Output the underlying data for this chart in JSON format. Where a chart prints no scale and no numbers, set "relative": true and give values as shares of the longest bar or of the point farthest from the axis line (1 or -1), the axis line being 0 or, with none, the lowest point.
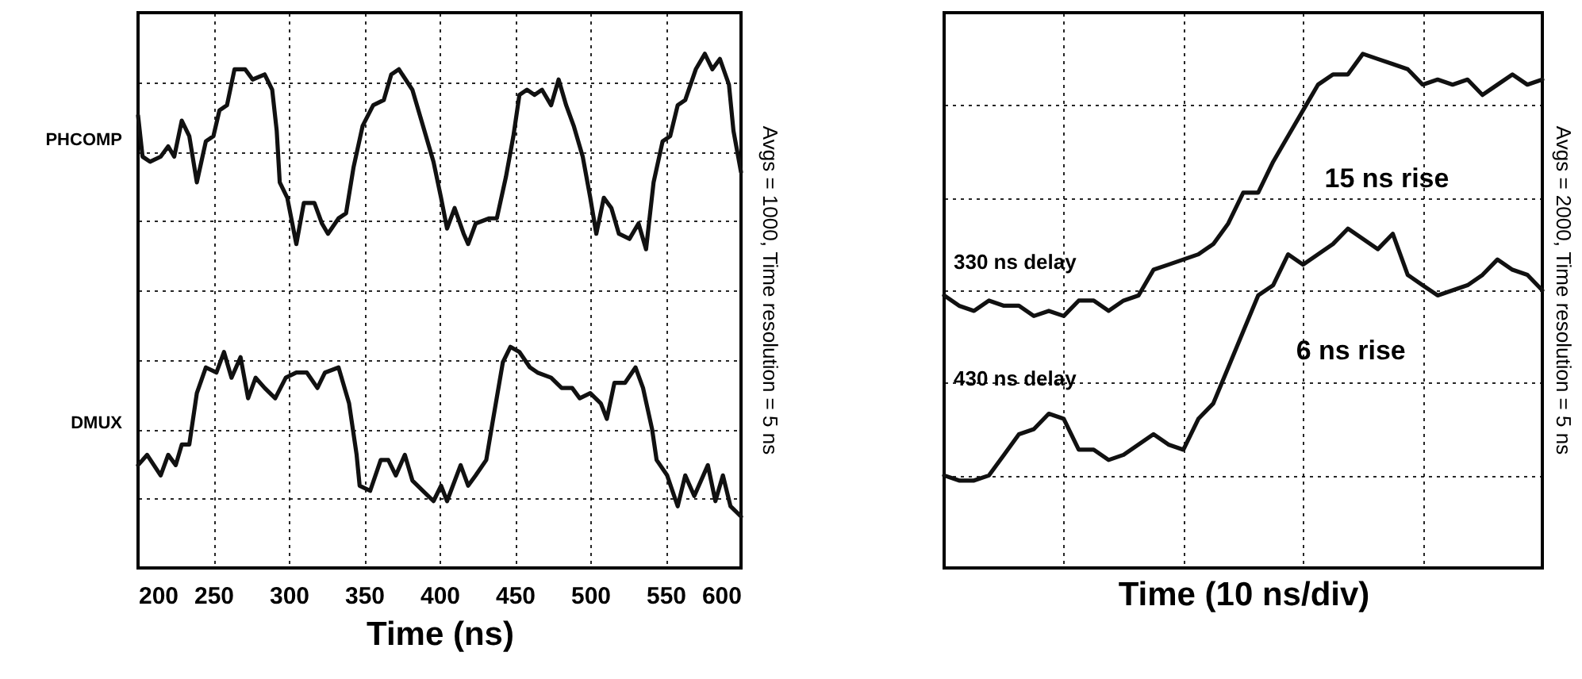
{
  "chart_data": [
    {
      "type": "line",
      "relative": true,
      "xlabel": "Time (ns)",
      "xlim": [
        200,
        600
      ],
      "xticks": [
        200,
        250,
        300,
        350,
        400,
        450,
        500,
        550,
        600
      ],
      "grid": true,
      "annotations": [
        "Avgs = 1000, Time resolution = 5 ns"
      ],
      "series": [
        {
          "name": "PHCOMP",
          "color": "#111111",
          "x": [
            200,
            203,
            208,
            215,
            220,
            224,
            229,
            234,
            239,
            245,
            250,
            254,
            259,
            264,
            271,
            276,
            284,
            289,
            292,
            294,
            299,
            305,
            310,
            317,
            322,
            326,
            333,
            338,
            343,
            349,
            356,
            363,
            368,
            373,
            382,
            389,
            396,
            401,
            405,
            410,
            416,
            419,
            424,
            433,
            438,
            444,
            449,
            453,
            458,
            463,
            468,
            474,
            479,
            484,
            489,
            495,
            500,
            504,
            509,
            514,
            519,
            526,
            532,
            537,
            542,
            548,
            553,
            558,
            563,
            570,
            576,
            581,
            586,
            592,
            595,
            600
          ],
          "values": [
            0.88,
            0.8,
            0.79,
            0.8,
            0.82,
            0.8,
            0.87,
            0.84,
            0.75,
            0.83,
            0.84,
            0.89,
            0.9,
            0.97,
            0.97,
            0.95,
            0.96,
            0.93,
            0.85,
            0.75,
            0.72,
            0.63,
            0.71,
            0.71,
            0.67,
            0.65,
            0.68,
            0.69,
            0.78,
            0.86,
            0.9,
            0.91,
            0.96,
            0.97,
            0.93,
            0.86,
            0.79,
            0.72,
            0.66,
            0.7,
            0.65,
            0.63,
            0.67,
            0.68,
            0.68,
            0.76,
            0.84,
            0.92,
            0.93,
            0.92,
            0.93,
            0.9,
            0.95,
            0.9,
            0.86,
            0.8,
            0.72,
            0.65,
            0.72,
            0.7,
            0.65,
            0.64,
            0.67,
            0.62,
            0.75,
            0.83,
            0.84,
            0.9,
            0.91,
            0.97,
            1.0,
            0.97,
            0.99,
            0.94,
            0.85,
            0.77
          ]
        },
        {
          "name": "DMUX",
          "color": "#111111",
          "x": [
            200,
            206,
            215,
            220,
            225,
            229,
            234,
            239,
            245,
            252,
            257,
            262,
            268,
            273,
            278,
            284,
            291,
            298,
            305,
            312,
            319,
            324,
            333,
            340,
            345,
            347,
            354,
            361,
            366,
            371,
            377,
            382,
            389,
            396,
            401,
            405,
            414,
            419,
            424,
            431,
            435,
            442,
            447,
            453,
            460,
            465,
            474,
            481,
            488,
            493,
            500,
            507,
            511,
            516,
            523,
            530,
            535,
            541,
            544,
            551,
            558,
            563,
            569,
            578,
            583,
            588,
            593,
            600
          ],
          "values": [
            0.2,
            0.22,
            0.18,
            0.22,
            0.2,
            0.24,
            0.24,
            0.34,
            0.39,
            0.38,
            0.42,
            0.37,
            0.41,
            0.33,
            0.37,
            0.35,
            0.33,
            0.37,
            0.38,
            0.38,
            0.35,
            0.38,
            0.39,
            0.32,
            0.22,
            0.16,
            0.15,
            0.21,
            0.21,
            0.18,
            0.22,
            0.17,
            0.15,
            0.13,
            0.16,
            0.13,
            0.2,
            0.16,
            0.18,
            0.21,
            0.28,
            0.4,
            0.43,
            0.42,
            0.39,
            0.38,
            0.37,
            0.35,
            0.35,
            0.33,
            0.34,
            0.32,
            0.29,
            0.36,
            0.36,
            0.39,
            0.35,
            0.27,
            0.21,
            0.18,
            0.12,
            0.18,
            0.14,
            0.2,
            0.13,
            0.18,
            0.12,
            0.1
          ]
        }
      ]
    },
    {
      "type": "line",
      "relative": true,
      "xlabel": "Time (10 ns/div)",
      "grid": true,
      "categories": [
        null,
        null,
        null,
        null,
        null,
        null,
        null,
        null,
        null,
        null,
        null,
        null,
        null,
        null,
        null,
        null,
        null,
        null,
        null,
        null,
        null,
        null,
        null,
        null,
        null,
        null,
        null,
        null,
        null,
        null,
        null,
        null,
        null,
        null,
        null,
        null,
        null,
        null,
        null,
        null,
        null
      ],
      "annotations": [
        "15 ns rise",
        "6 ns rise",
        "Avgs = 2000, Time resolution = 5 ns"
      ],
      "series": [
        {
          "name": "330 ns delay",
          "color": "#111111",
          "values": [
            0.53,
            0.51,
            0.5,
            0.52,
            0.51,
            0.51,
            0.49,
            0.5,
            0.49,
            0.52,
            0.52,
            0.5,
            0.52,
            0.53,
            0.58,
            0.59,
            0.6,
            0.61,
            0.63,
            0.67,
            0.73,
            0.73,
            0.79,
            0.84,
            0.89,
            0.94,
            0.96,
            0.96,
            1.0,
            0.99,
            0.98,
            0.97,
            0.94,
            0.95,
            0.94,
            0.95,
            0.92,
            0.94,
            0.96,
            0.94,
            0.95
          ]
        },
        {
          "name": "430 ns delay",
          "color": "#111111",
          "values": [
            0.18,
            0.17,
            0.17,
            0.18,
            0.22,
            0.26,
            0.27,
            0.3,
            0.29,
            0.23,
            0.23,
            0.21,
            0.22,
            0.24,
            0.26,
            0.24,
            0.23,
            0.29,
            0.32,
            0.39,
            0.46,
            0.53,
            0.55,
            0.61,
            0.59,
            0.61,
            0.63,
            0.66,
            0.64,
            0.62,
            0.65,
            0.57,
            0.55,
            0.53,
            0.54,
            0.55,
            0.57,
            0.6,
            0.58,
            0.57,
            0.54
          ]
        }
      ]
    }
  ]
}
